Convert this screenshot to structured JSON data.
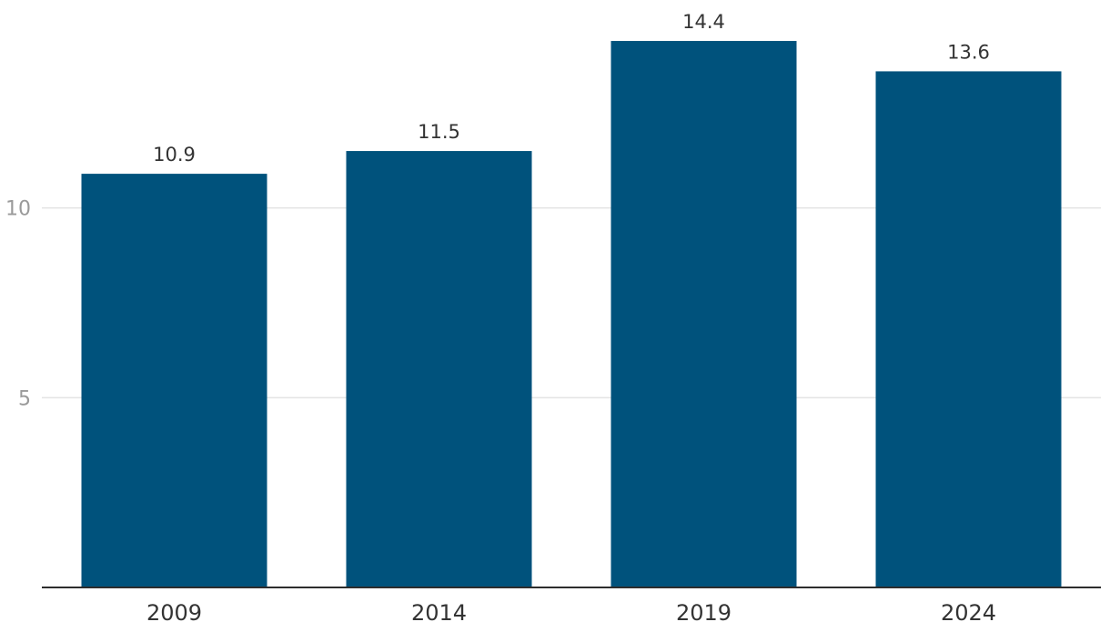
{
  "chart_data": {
    "type": "bar",
    "title": "",
    "xlabel": "",
    "ylabel": "",
    "categories": [
      "2009",
      "2014",
      "2019",
      "2024"
    ],
    "values": [
      10.9,
      11.5,
      14.4,
      13.6
    ],
    "value_labels": [
      "10.9",
      "11.5",
      "14.4",
      "13.6"
    ],
    "ylim": [
      0,
      15
    ],
    "yticks": [
      5,
      10
    ],
    "ytick_labels": [
      "5",
      "10"
    ],
    "grid": true,
    "legend": "none",
    "colors": {
      "bar": "#00527c",
      "grid": "#e3e3e3",
      "axis": "#2d2d2d"
    }
  }
}
